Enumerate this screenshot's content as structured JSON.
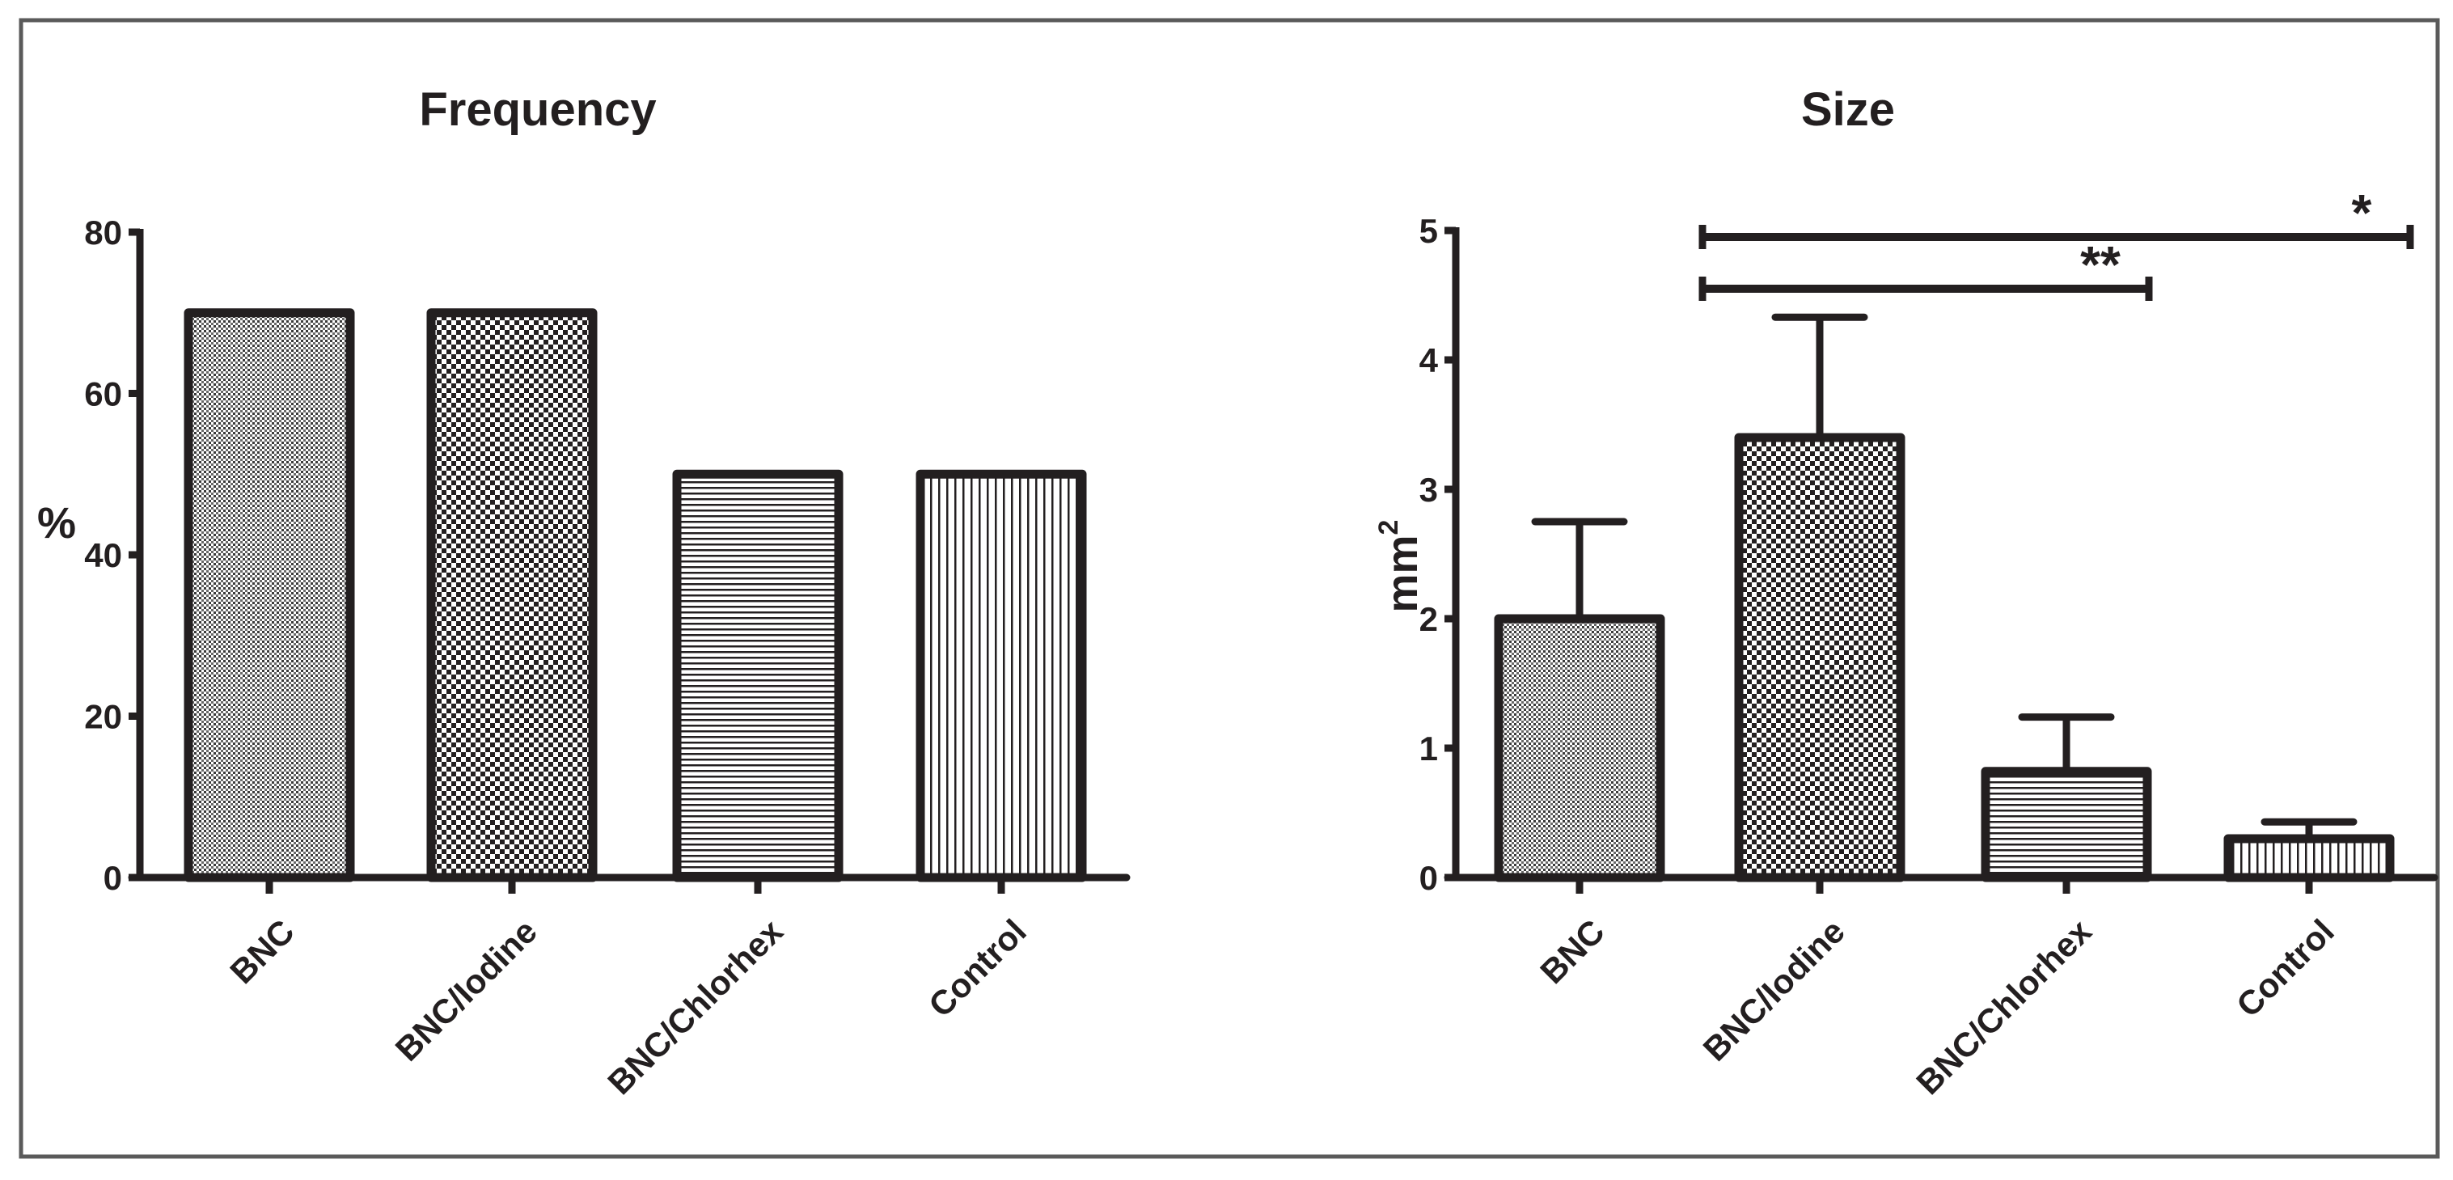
{
  "colors": {
    "ink": "#231f20",
    "frame": "#5a5a5a",
    "background": "#ffffff"
  },
  "chart_data": [
    {
      "type": "bar",
      "title": "Frequency",
      "xlabel": "",
      "ylabel": "%",
      "categories": [
        "BNC",
        "BNC/Iodine",
        "BNC/Chlorhex",
        "Control"
      ],
      "values": [
        70,
        70,
        50,
        50
      ],
      "ylim": [
        0,
        80
      ],
      "yticks": [
        0,
        20,
        40,
        60,
        80
      ],
      "ytick_labels": [
        "0",
        "20",
        "40",
        "60",
        "80"
      ],
      "patterns": [
        "fine-dots",
        "checker",
        "horizontal-lines",
        "vertical-lines"
      ]
    },
    {
      "type": "bar",
      "title": "Size",
      "xlabel": "",
      "ylabel_base": "mm",
      "ylabel_sup": "2",
      "categories": [
        "BNC",
        "BNC/Iodine",
        "BNC/Chlorhex",
        "Control"
      ],
      "values": [
        2.0,
        3.4,
        0.82,
        0.3
      ],
      "error_upper": [
        0.75,
        0.93,
        0.42,
        0.13
      ],
      "ylim": [
        0,
        5
      ],
      "yticks": [
        0,
        1,
        2,
        3,
        4,
        5
      ],
      "ytick_labels": [
        "0",
        "1",
        "2",
        "3",
        "4",
        "5"
      ],
      "patterns": [
        "fine-dots",
        "checker",
        "horizontal-lines",
        "vertical-lines"
      ],
      "significance": [
        {
          "from": "BNC/Iodine",
          "to": "Control",
          "label": "*",
          "level": 4.95
        },
        {
          "from": "BNC/Iodine",
          "to": "BNC/Chlorhex",
          "label": "**",
          "level": 4.55
        }
      ]
    }
  ]
}
